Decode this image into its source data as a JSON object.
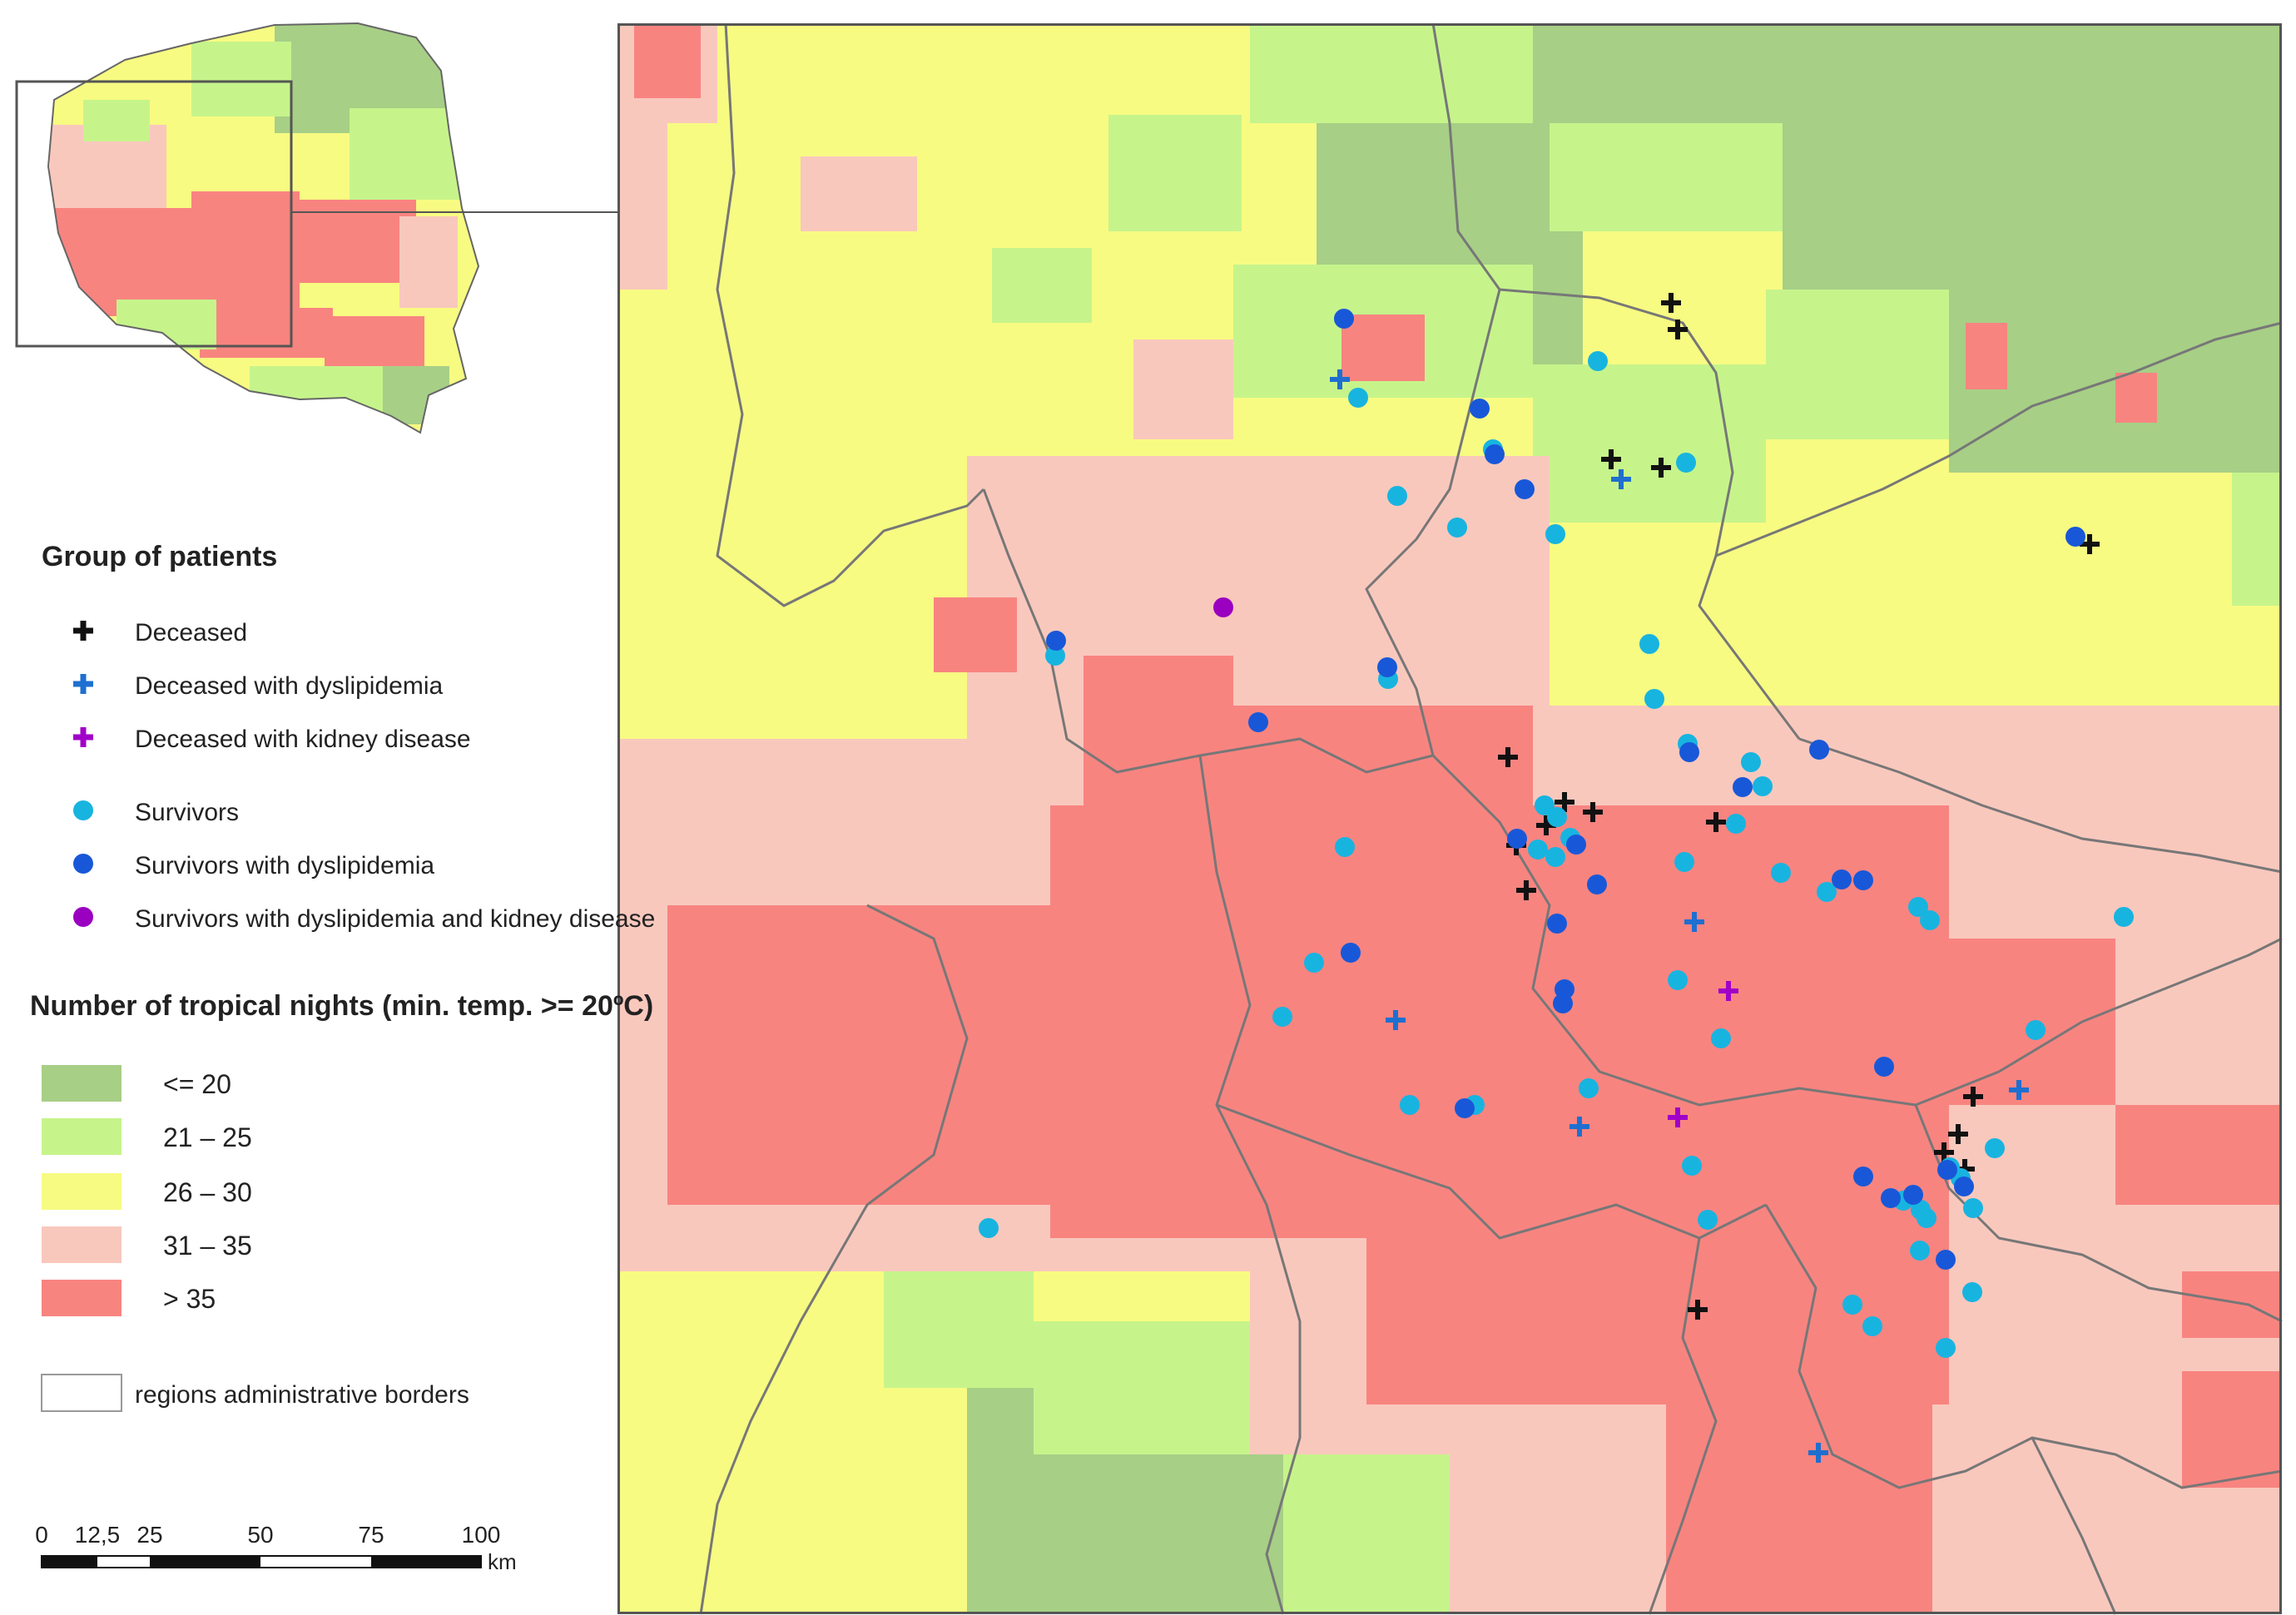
{
  "legend": {
    "group_title": "Group of patients",
    "groups": [
      {
        "label": "Deceased",
        "symbol": "cross",
        "color": "#111111"
      },
      {
        "label": "Deceased with dyslipidemia",
        "symbol": "cross",
        "color": "#1f6fd0"
      },
      {
        "label": "Deceased with kidney disease",
        "symbol": "cross",
        "color": "#a000c8"
      },
      {
        "label": "Survivors",
        "symbol": "dot",
        "color": "#18b4e0"
      },
      {
        "label": "Survivors with dyslipidemia",
        "symbol": "dot",
        "color": "#1858d8"
      },
      {
        "label": "Survivors with dyslipidemia and kidney disease",
        "symbol": "dot",
        "color": "#9a00c0"
      }
    ],
    "nights_title": "Number of tropical nights (min. temp. >= 20ºC)",
    "classes": [
      {
        "label": "<= 20",
        "color": "#a7cf86"
      },
      {
        "label": "21 – 25",
        "color": "#c6f48b"
      },
      {
        "label": "26 – 30",
        "color": "#f7fb82"
      },
      {
        "label": "31 – 35",
        "color": "#f9c8bd"
      },
      {
        "label": "> 35",
        "color": "#f88480"
      }
    ],
    "borders_label": "regions administrative borders"
  },
  "scale_bar": {
    "ticks": [
      "0",
      "12,5",
      "25",
      "50",
      "75",
      "100"
    ],
    "unit": "km"
  },
  "colors": {
    "border": "#777777",
    "frame": "#555555"
  }
}
